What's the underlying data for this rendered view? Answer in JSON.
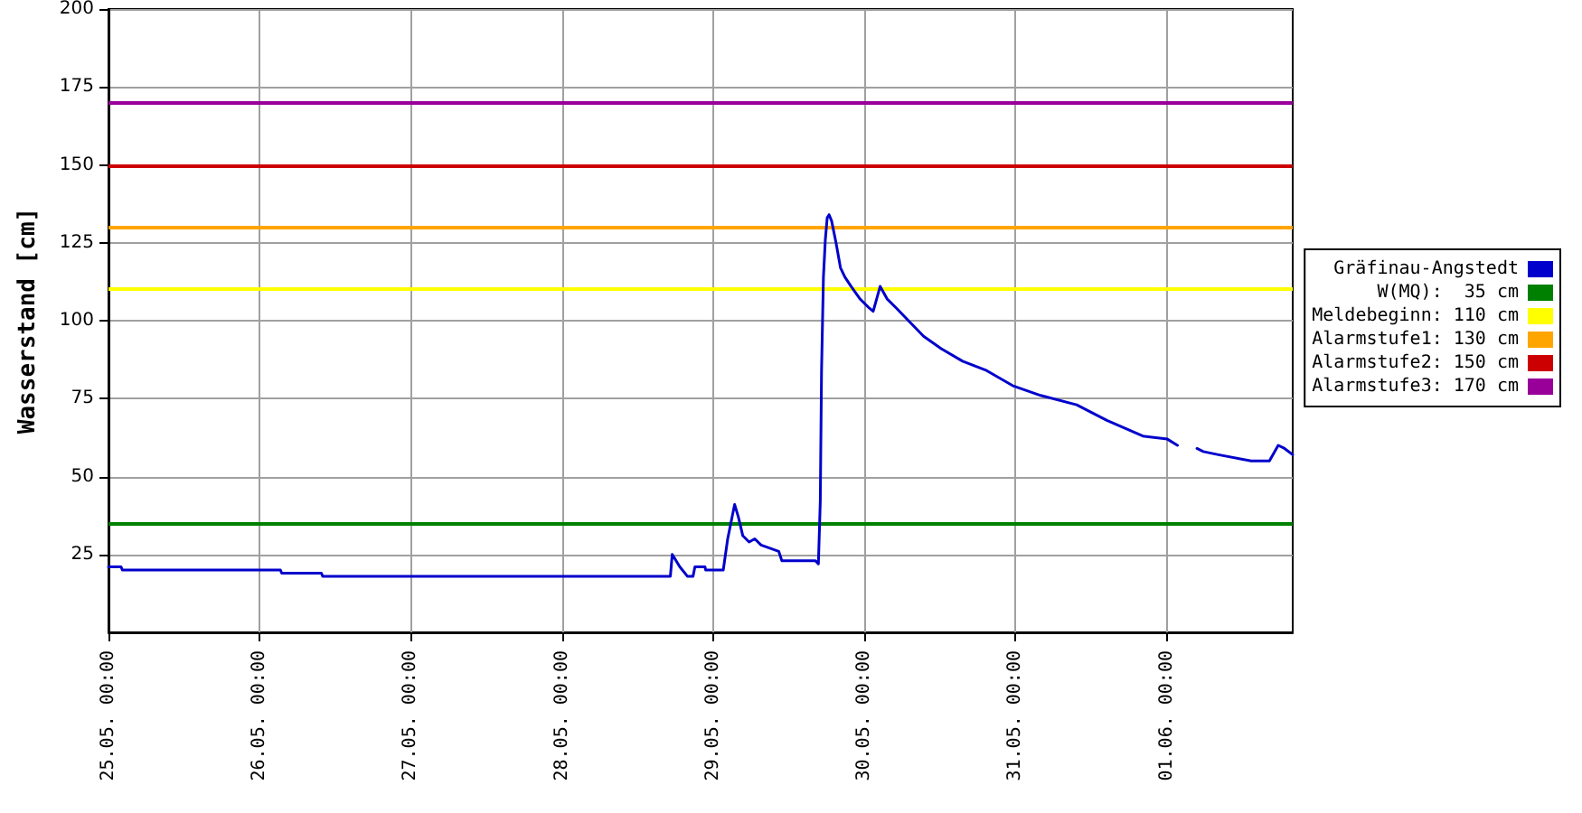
{
  "chart_data": {
    "type": "line",
    "ylabel": "Wasserstand [cm]",
    "x": [
      "--05-25T00:00",
      "--05-25T02:00",
      "--05-25T02:12",
      "--05-26T03:18",
      "--05-26T03:30",
      "--05-26T09:48",
      "--05-26T10:00",
      "--05-28T17:12",
      "--05-28T17:30",
      "--05-28T18:42",
      "--05-28T19:54",
      "--05-28T20:48",
      "--05-28T21:06",
      "--05-28T22:42",
      "--05-28T22:48",
      "--05-29T01:36",
      "--05-29T02:18",
      "--05-29T03:24",
      "--05-29T04:00",
      "--05-29T04:42",
      "--05-29T05:42",
      "--05-29T06:36",
      "--05-29T07:36",
      "--05-29T09:00",
      "--05-29T10:24",
      "--05-29T10:54",
      "--05-29T16:12",
      "--05-29T16:42",
      "--05-29T17:00",
      "--05-29T17:12",
      "--05-29T17:30",
      "--05-29T17:48",
      "--05-29T18:06",
      "--05-29T18:24",
      "--05-29T18:48",
      "--05-29T19:30",
      "--05-29T20:12",
      "--05-29T20:54",
      "--05-29T21:54",
      "--05-29T23:18",
      "--05-30T00:48",
      "--05-30T01:24",
      "--05-30T02:30",
      "--05-30T03:36",
      "--05-30T05:06",
      "--05-30T07:00",
      "--05-30T09:24",
      "--05-30T12:12",
      "--05-30T15:36",
      "--05-30T19:24",
      "--05-30T23:42",
      "--05-31T04:00",
      "--05-31T09:42",
      "--05-31T14:30",
      "--05-31T20:12",
      "--06-01T00:06",
      "--06-01T01:42",
      "--06-01T03:00",
      "--06-01T04:48",
      "--06-01T05:48",
      "--06-01T08:12",
      "--06-01T13:24",
      "--06-01T16:18",
      "--06-01T17:42",
      "--06-01T18:42",
      "--06-01T20:00"
    ],
    "series": [
      {
        "name": "Gräfinau-Angstedt",
        "color": "#0000cc",
        "values": [
          21,
          21,
          20,
          20,
          19,
          19,
          18,
          18,
          25,
          21,
          18,
          18,
          21,
          21,
          20,
          20,
          30,
          41,
          37,
          31,
          29,
          30,
          28,
          27,
          26,
          23,
          23,
          22,
          42,
          84,
          114,
          126,
          133,
          134,
          132,
          125,
          117,
          114,
          111,
          107,
          104,
          103,
          111,
          107,
          104,
          100,
          95,
          91,
          87,
          84,
          79,
          76,
          73,
          68,
          63,
          62,
          60,
          null,
          59,
          58,
          57,
          55,
          55,
          60,
          59,
          57
        ]
      }
    ],
    "xlim": [
      "--05-25T00:00",
      "--06-01T20:00"
    ],
    "xticks": [
      {
        "value": "--05-25T00:00",
        "label": "25.05. 00:00"
      },
      {
        "value": "--05-26T00:00",
        "label": "26.05. 00:00"
      },
      {
        "value": "--05-27T00:00",
        "label": "27.05. 00:00"
      },
      {
        "value": "--05-28T00:00",
        "label": "28.05. 00:00"
      },
      {
        "value": "--05-29T00:00",
        "label": "29.05. 00:00"
      },
      {
        "value": "--05-30T00:00",
        "label": "30.05. 00:00"
      },
      {
        "value": "--05-31T00:00",
        "label": "31.05. 00:00"
      },
      {
        "value": "--06-01T00:00",
        "label": "01.06. 00:00"
      }
    ],
    "ylim": [
      0,
      200
    ],
    "yticks": [
      25,
      50,
      75,
      100,
      125,
      150,
      175,
      200
    ],
    "ref_lines": [
      {
        "axis": "y",
        "value": 35,
        "label": "W(MQ):  35 cm",
        "color": "#008000"
      },
      {
        "axis": "y",
        "value": 110,
        "label": "Meldebeginn: 110 cm",
        "color": "#ffff00"
      },
      {
        "axis": "y",
        "value": 130,
        "label": "Alarmstufe1: 130 cm",
        "color": "#ffa500"
      },
      {
        "axis": "y",
        "value": 150,
        "label": "Alarmstufe2: 150 cm",
        "color": "#cc0000"
      },
      {
        "axis": "y",
        "value": 170,
        "label": "Alarmstufe3: 170 cm",
        "color": "#990099"
      }
    ],
    "grid": true,
    "legend": "right"
  }
}
